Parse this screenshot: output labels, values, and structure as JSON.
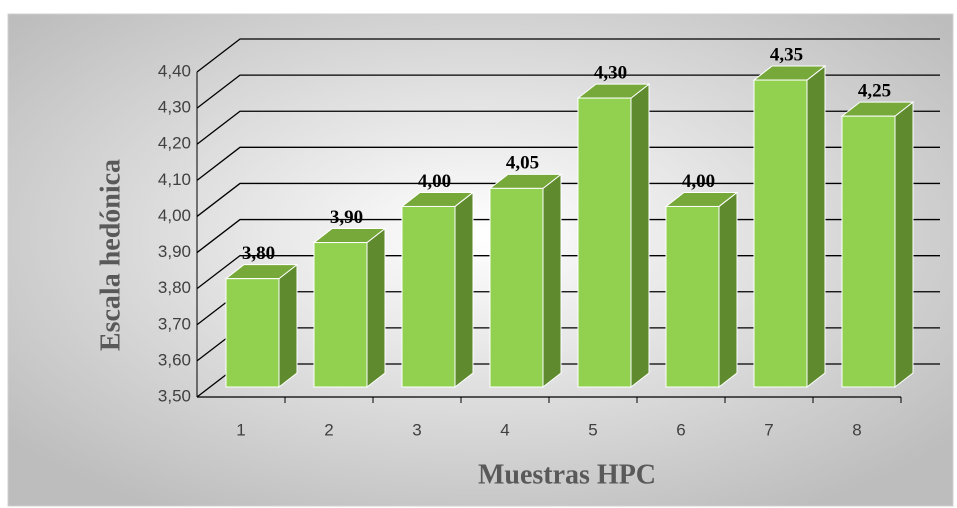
{
  "chart_data": {
    "type": "bar3d",
    "xlabel": "Muestras HPC",
    "ylabel": "Escala hedónica",
    "categories": [
      "1",
      "2",
      "3",
      "4",
      "5",
      "6",
      "7",
      "8"
    ],
    "values": [
      3.8,
      3.9,
      4.0,
      4.05,
      4.3,
      4.0,
      4.35,
      4.25
    ],
    "value_labels": [
      "3,80",
      "3,90",
      "4,00",
      "4,05",
      "4,30",
      "4,00",
      "4,35",
      "4,25"
    ],
    "color": "#92d050",
    "ylim": [
      3.5,
      4.4
    ],
    "yticks": [
      {
        "value": 3.5,
        "label": "3,50"
      },
      {
        "value": 3.6,
        "label": "3,60"
      },
      {
        "value": 3.7,
        "label": "3,70"
      },
      {
        "value": 3.8,
        "label": "3,80"
      },
      {
        "value": 3.9,
        "label": "3,90"
      },
      {
        "value": 4.0,
        "label": "4,00"
      },
      {
        "value": 4.1,
        "label": "4,10"
      },
      {
        "value": 4.2,
        "label": "4,20"
      },
      {
        "value": 4.3,
        "label": "4,30"
      },
      {
        "value": 4.4,
        "label": "4,40"
      }
    ],
    "grid": true
  }
}
